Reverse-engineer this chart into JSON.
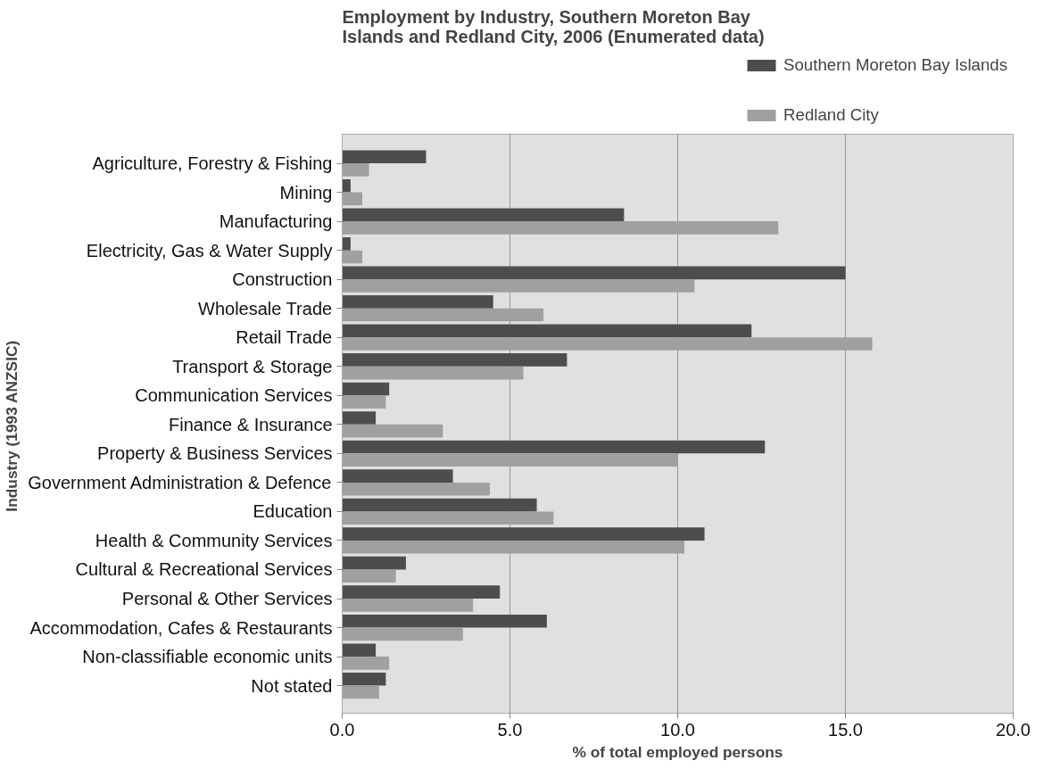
{
  "chart_data": {
    "type": "bar",
    "orientation": "horizontal",
    "title": "Employment by Industry, Southern Moreton Bay Islands and Redland City, 2006 (Enumerated data)",
    "xlabel": "% of total employed persons",
    "ylabel": "Industry  (1993 ANZSIC)",
    "categories": [
      "Agriculture, Forestry & Fishing",
      "Mining",
      "Manufacturing",
      "Electricity, Gas & Water Supply",
      "Construction",
      "Wholesale Trade",
      "Retail Trade",
      "Transport & Storage",
      "Communication Services",
      "Finance & Insurance",
      "Property & Business Services",
      "Government Administration & Defence",
      "Education",
      "Health & Community Services",
      "Cultural & Recreational Services",
      "Personal & Other Services",
      "Accommodation, Cafes & Restaurants",
      "Non-classifiable economic units",
      "Not stated"
    ],
    "series": [
      {
        "name": "Southern Moreton Bay Islands",
        "color": "#4d4d4d",
        "values": [
          2.5,
          0.25,
          8.4,
          0.25,
          15.0,
          4.5,
          12.2,
          6.7,
          1.4,
          1.0,
          12.6,
          3.3,
          5.8,
          10.8,
          1.9,
          4.7,
          6.1,
          1.0,
          1.3
        ]
      },
      {
        "name": "Redland City",
        "color": "#a0a0a0",
        "values": [
          0.8,
          0.6,
          13.0,
          0.6,
          10.5,
          6.0,
          15.8,
          5.4,
          1.3,
          3.0,
          10.0,
          4.4,
          6.3,
          10.2,
          1.6,
          3.9,
          3.6,
          1.4,
          1.1
        ]
      }
    ],
    "xlim": [
      0,
      20
    ],
    "xticks": [
      {
        "value": 0,
        "label": "0.0"
      },
      {
        "value": 5,
        "label": "5.0"
      },
      {
        "value": 10,
        "label": "10.0"
      },
      {
        "value": 15,
        "label": "15.0"
      },
      {
        "value": 20,
        "label": "20.0"
      }
    ],
    "grid": "x",
    "legend": "top right"
  }
}
